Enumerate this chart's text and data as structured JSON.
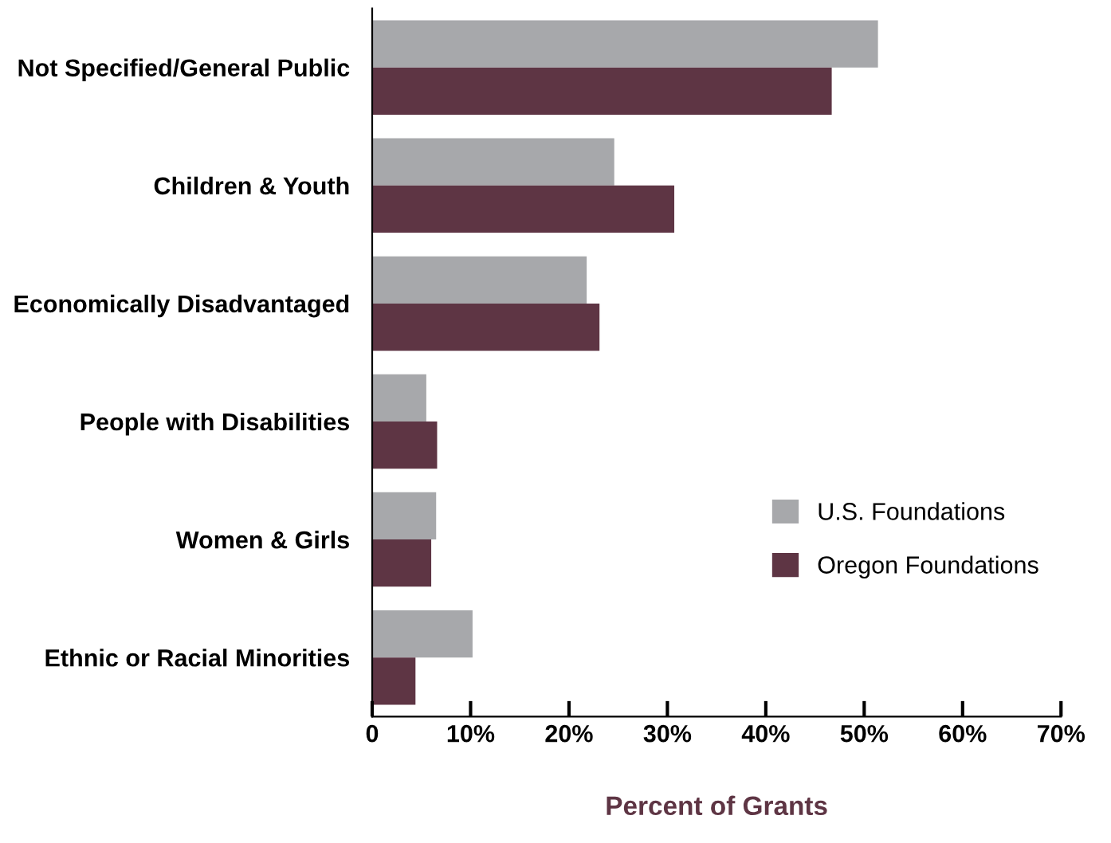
{
  "chart_data": {
    "type": "bar",
    "orientation": "horizontal",
    "xlabel": "Percent of Grants",
    "categories": [
      "Not Specified/General Public",
      "Children & Youth",
      "Economically Disadvantaged",
      "People with Disabilities",
      "Women & Girls",
      "Ethnic or Racial Minorities"
    ],
    "series": [
      {
        "name": "U.S. Foundations",
        "color": "#a7a8ab",
        "values": [
          51.4,
          24.6,
          21.8,
          5.5,
          6.5,
          10.2
        ]
      },
      {
        "name": "Oregon Foundations",
        "color": "#5e3544",
        "values": [
          46.7,
          30.7,
          23.1,
          6.6,
          6.0,
          4.4
        ]
      }
    ],
    "xlim": [
      0,
      70
    ],
    "xticks": [
      0,
      {
        "value": 10,
        "label": "10%"
      },
      {
        "value": 20,
        "label": "20%"
      },
      {
        "value": 30,
        "label": "30%"
      },
      {
        "value": 40,
        "label": "40%"
      },
      {
        "value": 50,
        "label": "50%"
      },
      {
        "value": 60,
        "label": "60%"
      },
      {
        "value": 70,
        "label": "70%"
      }
    ],
    "grid": false,
    "legend": "right"
  }
}
